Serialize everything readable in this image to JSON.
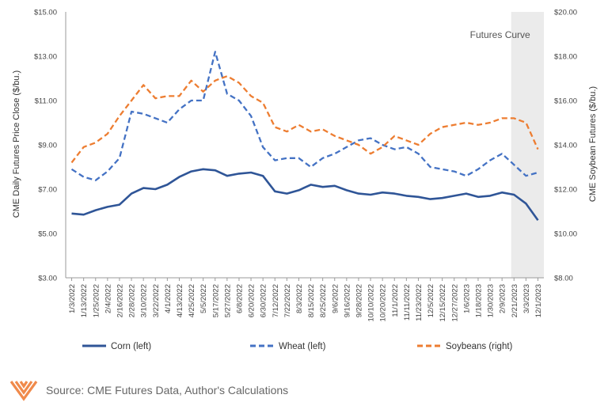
{
  "chart_data": {
    "type": "line",
    "left_axis": {
      "label": "CME Daily Futures Price Close ($/bu.)",
      "range": [
        3,
        15
      ],
      "ticks": [
        "$3.00",
        "$5.00",
        "$7.00",
        "$9.00",
        "$11.00",
        "$13.00",
        "$15.00"
      ],
      "tick_values": [
        3,
        5,
        7,
        9,
        11,
        13,
        15
      ]
    },
    "right_axis": {
      "label": "CME Soybean Futures ($/bu.)",
      "range": [
        8,
        20
      ],
      "ticks": [
        "$8.00",
        "$10.00",
        "$12.00",
        "$14.00",
        "$16.00",
        "$18.00",
        "$20.00"
      ],
      "tick_values": [
        8,
        10,
        12,
        14,
        16,
        18,
        20
      ]
    },
    "x_tick_labels": [
      "1/3/2022",
      "1/13/2022",
      "1/25/2022",
      "2/4/2022",
      "2/16/2022",
      "2/28/2022",
      "3/10/2022",
      "3/22/2022",
      "4/1/2022",
      "4/13/2022",
      "4/25/2022",
      "5/5/2022",
      "5/17/2022",
      "5/27/2022",
      "6/8/2022",
      "6/20/2022",
      "6/30/2022",
      "7/12/2022",
      "7/22/2022",
      "8/3/2022",
      "8/15/2022",
      "8/25/2022",
      "9/6/2022",
      "9/16/2022",
      "9/28/2022",
      "10/10/2022",
      "10/20/2022",
      "11/1/2022",
      "11/11/2022",
      "11/23/2022",
      "12/5/2022",
      "12/15/2022",
      "12/27/2022",
      "1/6/2023",
      "1/18/2023",
      "1/30/2023",
      "2/9/2023",
      "2/21/2023",
      "3/3/2023",
      "12/1/2023"
    ],
    "shaded_region": {
      "label": "Futures Curve",
      "from_index": 37,
      "to_index": 39
    },
    "series": [
      {
        "name": "Corn (left)",
        "axis": "left",
        "color": "#2F5597",
        "style": "solid",
        "values": [
          5.9,
          5.85,
          6.05,
          6.2,
          6.3,
          6.8,
          7.05,
          7.0,
          7.2,
          7.55,
          7.8,
          7.9,
          7.85,
          7.6,
          7.7,
          7.75,
          7.6,
          6.9,
          6.8,
          6.95,
          7.2,
          7.1,
          7.15,
          6.95,
          6.8,
          6.75,
          6.85,
          6.8,
          6.7,
          6.65,
          6.55,
          6.6,
          6.7,
          6.8,
          6.65,
          6.7,
          6.85,
          6.75,
          6.35,
          5.6
        ]
      },
      {
        "name": "Wheat (left)",
        "axis": "left",
        "color": "#4472C4",
        "style": "dashed",
        "values": [
          7.9,
          7.55,
          7.4,
          7.8,
          8.4,
          10.5,
          10.4,
          10.2,
          10.0,
          10.6,
          11.0,
          11.0,
          13.2,
          11.3,
          11.0,
          10.3,
          8.9,
          8.3,
          8.4,
          8.4,
          8.0,
          8.4,
          8.6,
          8.9,
          9.2,
          9.3,
          9.0,
          8.8,
          8.9,
          8.6,
          8.0,
          7.9,
          7.8,
          7.6,
          7.9,
          8.3,
          8.6,
          8.1,
          7.6,
          7.75
        ]
      },
      {
        "name": "Soybeans (right)",
        "axis": "right",
        "color": "#ED7D31",
        "style": "dashed",
        "values": [
          13.2,
          13.9,
          14.1,
          14.5,
          15.3,
          16.0,
          16.7,
          16.1,
          16.2,
          16.2,
          16.9,
          16.4,
          16.9,
          17.1,
          16.8,
          16.2,
          15.9,
          14.8,
          14.6,
          14.9,
          14.6,
          14.7,
          14.4,
          14.2,
          14.0,
          13.6,
          13.9,
          14.4,
          14.2,
          14.0,
          14.5,
          14.8,
          14.9,
          15.0,
          14.9,
          15.0,
          15.2,
          15.2,
          15.0,
          13.8
        ]
      }
    ]
  },
  "source": {
    "text": "Source: CME Futures Data, Author's Calculations"
  }
}
